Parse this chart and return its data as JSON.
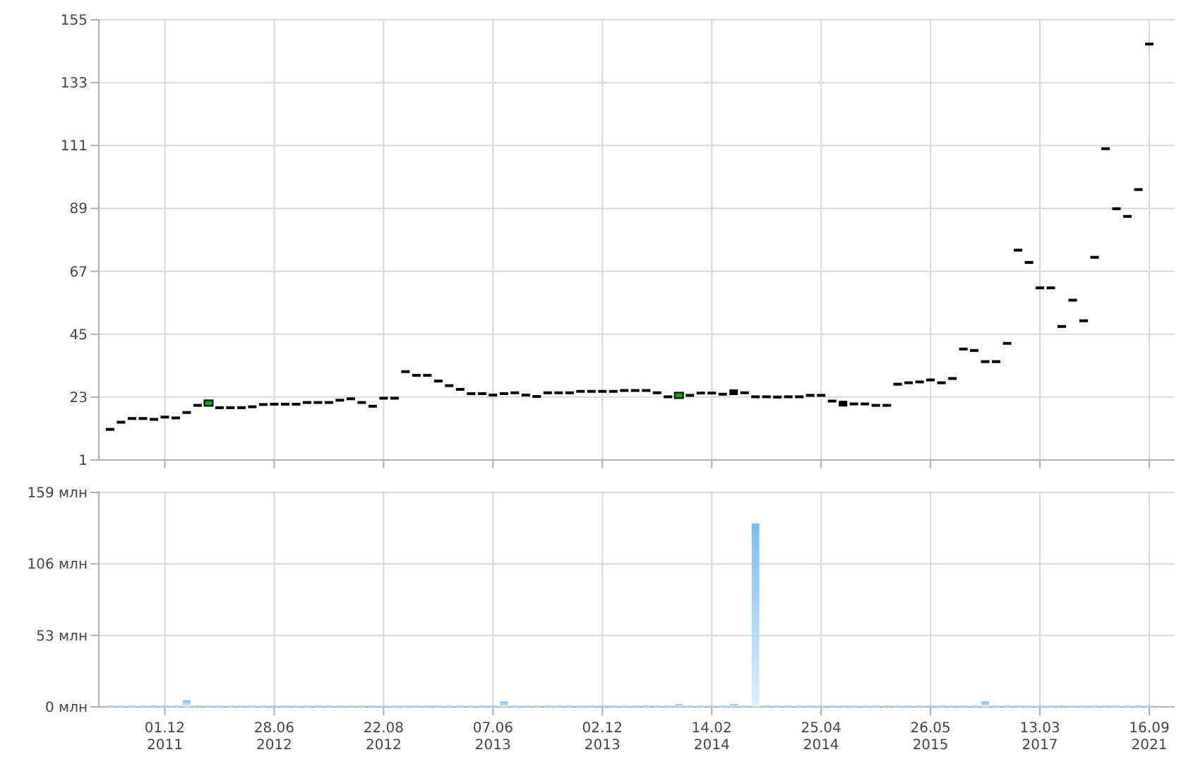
{
  "chart_data": [
    {
      "type": "candlestick",
      "categories": [
        null,
        null,
        null,
        null,
        null,
        null,
        null,
        null,
        null,
        null,
        null,
        null,
        null,
        null,
        null,
        null,
        null,
        null,
        null,
        null,
        null,
        null,
        null,
        null,
        null,
        null,
        null,
        null,
        null,
        null,
        null,
        null,
        null,
        null,
        null,
        null,
        null,
        null,
        null,
        null,
        null,
        null,
        null,
        null,
        null,
        null,
        null,
        null,
        null,
        null,
        null,
        null,
        null,
        null,
        null,
        null,
        null,
        null,
        null,
        null,
        null,
        null,
        null,
        null,
        null,
        null,
        null,
        null,
        null,
        null,
        null,
        null,
        null,
        null,
        null,
        null,
        null,
        null,
        null,
        null,
        null,
        null,
        null,
        null,
        null,
        null,
        null,
        null,
        null,
        null,
        null,
        null,
        null,
        null,
        null,
        null
      ],
      "ohlc": [
        [
          11.7,
          11.7,
          11.7,
          11.7
        ],
        [
          14.2,
          14.2,
          14.2,
          14.2
        ],
        [
          15.5,
          15.5,
          15.5,
          15.5
        ],
        [
          15.5,
          15.5,
          15.5,
          15.5
        ],
        [
          15.2,
          15.2,
          15.2,
          15.2
        ],
        [
          16.0,
          16.0,
          16.0,
          16.0
        ],
        [
          15.7,
          15.7,
          15.7,
          15.7
        ],
        [
          17.6,
          17.6,
          17.6,
          17.6
        ],
        [
          20.1,
          20.1,
          20.1,
          20.1
        ],
        [
          20.4,
          21.4,
          20.4,
          21.4
        ],
        [
          19.3,
          19.3,
          19.3,
          19.3
        ],
        [
          19.3,
          19.3,
          19.3,
          19.3
        ],
        [
          19.3,
          19.8,
          19.3,
          19.3
        ],
        [
          19.6,
          19.6,
          19.6,
          19.6
        ],
        [
          20.4,
          20.4,
          20.4,
          20.4
        ],
        [
          20.5,
          20.5,
          20.5,
          20.5
        ],
        [
          20.5,
          20.5,
          20.5,
          20.5
        ],
        [
          20.5,
          20.5,
          20.5,
          20.5
        ],
        [
          21.1,
          21.1,
          21.1,
          21.1
        ],
        [
          21.1,
          21.1,
          21.1,
          21.1
        ],
        [
          21.1,
          21.1,
          21.1,
          21.1
        ],
        [
          21.9,
          21.9,
          21.9,
          21.9
        ],
        [
          22.4,
          22.4,
          22.4,
          22.4
        ],
        [
          21.1,
          21.1,
          21.1,
          21.1
        ],
        [
          19.8,
          19.8,
          19.8,
          19.8
        ],
        [
          22.6,
          22.6,
          22.6,
          22.6
        ],
        [
          22.6,
          22.6,
          22.6,
          22.6
        ],
        [
          31.9,
          31.9,
          31.9,
          31.9
        ],
        [
          30.6,
          30.6,
          30.6,
          30.6
        ],
        [
          30.6,
          30.6,
          30.6,
          30.6
        ],
        [
          28.6,
          28.6,
          28.6,
          28.6
        ],
        [
          27.0,
          27.0,
          27.0,
          27.0
        ],
        [
          25.7,
          25.7,
          25.7,
          25.7
        ],
        [
          24.2,
          24.2,
          24.2,
          24.2
        ],
        [
          24.2,
          24.2,
          24.2,
          24.2
        ],
        [
          23.7,
          23.7,
          23.7,
          23.7
        ],
        [
          24.2,
          24.2,
          24.2,
          24.2
        ],
        [
          24.5,
          24.5,
          24.5,
          24.5
        ],
        [
          23.7,
          23.7,
          23.7,
          23.7
        ],
        [
          23.2,
          23.2,
          23.2,
          23.2
        ],
        [
          24.5,
          24.5,
          24.5,
          24.5
        ],
        [
          24.5,
          24.5,
          24.5,
          24.5
        ],
        [
          24.5,
          24.5,
          24.5,
          24.5
        ],
        [
          25.0,
          25.0,
          25.0,
          25.0
        ],
        [
          25.0,
          25.0,
          25.0,
          25.0
        ],
        [
          25.0,
          25.0,
          25.0,
          25.0
        ],
        [
          25.0,
          25.0,
          25.0,
          25.0
        ],
        [
          25.3,
          25.3,
          25.3,
          25.3
        ],
        [
          25.3,
          25.3,
          25.3,
          25.3
        ],
        [
          25.3,
          25.3,
          25.3,
          25.3
        ],
        [
          24.5,
          24.5,
          24.5,
          24.5
        ],
        [
          23.1,
          23.1,
          23.1,
          23.1
        ],
        [
          23.1,
          24.1,
          23.1,
          24.1
        ],
        [
          23.6,
          23.6,
          23.6,
          23.6
        ],
        [
          24.4,
          24.4,
          24.4,
          24.4
        ],
        [
          24.4,
          24.4,
          24.4,
          24.4
        ],
        [
          24.0,
          24.0,
          24.0,
          24.0
        ],
        [
          25.2,
          25.2,
          24.2,
          24.2
        ],
        [
          24.5,
          24.5,
          24.5,
          24.5
        ],
        [
          23.1,
          23.1,
          23.1,
          23.1
        ],
        [
          23.1,
          23.1,
          23.1,
          23.1
        ],
        [
          23.0,
          23.5,
          23.0,
          23.0
        ],
        [
          23.1,
          23.1,
          23.1,
          23.1
        ],
        [
          23.1,
          23.1,
          23.1,
          23.1
        ],
        [
          23.6,
          23.6,
          23.6,
          23.6
        ],
        [
          23.6,
          23.6,
          23.6,
          23.6
        ],
        [
          21.6,
          21.6,
          21.6,
          21.6
        ],
        [
          21.2,
          21.2,
          20.2,
          20.2
        ],
        [
          20.6,
          20.6,
          20.6,
          20.6
        ],
        [
          20.6,
          20.6,
          20.6,
          20.6
        ],
        [
          20.1,
          20.1,
          20.1,
          20.1
        ],
        [
          20.1,
          20.1,
          20.1,
          20.1
        ],
        [
          27.5,
          27.5,
          27.5,
          27.5
        ],
        [
          28.0,
          28.0,
          28.0,
          28.0
        ],
        [
          28.3,
          28.3,
          28.3,
          28.3
        ],
        [
          29.0,
          29.0,
          29.0,
          29.0
        ],
        [
          28.0,
          28.0,
          28.0,
          28.0
        ],
        [
          29.5,
          29.5,
          29.5,
          29.5
        ],
        [
          39.8,
          39.8,
          39.8,
          39.8
        ],
        [
          39.3,
          39.3,
          39.3,
          39.3
        ],
        [
          35.4,
          35.4,
          35.4,
          35.4
        ],
        [
          35.4,
          35.4,
          35.4,
          35.4
        ],
        [
          41.8,
          41.8,
          41.8,
          41.8
        ],
        [
          74.4,
          74.4,
          74.4,
          74.4
        ],
        [
          70.1,
          70.1,
          70.1,
          70.1
        ],
        [
          61.2,
          61.2,
          61.2,
          61.2
        ],
        [
          61.2,
          61.2,
          61.2,
          61.2
        ],
        [
          47.7,
          47.7,
          47.7,
          47.7
        ],
        [
          56.9,
          56.9,
          56.9,
          56.9
        ],
        [
          49.7,
          49.7,
          49.7,
          49.7
        ],
        [
          71.9,
          71.9,
          71.9,
          71.9
        ],
        [
          109.9,
          109.9,
          109.9,
          109.9
        ],
        [
          88.9,
          88.9,
          88.9,
          88.9
        ],
        [
          86.2,
          86.2,
          86.2,
          86.2
        ],
        [
          95.6,
          95.6,
          95.6,
          95.6
        ],
        [
          146.5,
          146.5,
          146.5,
          146.5
        ]
      ],
      "ylim": [
        1,
        155
      ],
      "yticks": [
        1,
        23,
        45,
        67,
        89,
        111,
        133,
        155
      ],
      "grid": true
    },
    {
      "type": "bar",
      "categories": [
        null,
        null,
        null,
        null,
        null,
        "01.12\n2011",
        null,
        null,
        null,
        null,
        null,
        null,
        null,
        null,
        null,
        "28.06\n2012",
        null,
        null,
        null,
        null,
        null,
        null,
        null,
        null,
        null,
        "22.08\n2012",
        null,
        null,
        null,
        null,
        null,
        null,
        null,
        null,
        null,
        "07.06\n2013",
        null,
        null,
        null,
        null,
        null,
        null,
        null,
        null,
        null,
        "02.12\n2013",
        null,
        null,
        null,
        null,
        null,
        null,
        null,
        null,
        null,
        "14.02\n2014",
        null,
        null,
        null,
        null,
        null,
        null,
        null,
        null,
        null,
        "25.04\n2014",
        null,
        null,
        null,
        null,
        null,
        null,
        null,
        null,
        null,
        "26.05\n2015",
        null,
        null,
        null,
        null,
        null,
        null,
        null,
        null,
        null,
        "13.03\n2017",
        null,
        null,
        null,
        null,
        null,
        null,
        null,
        null,
        null,
        "16.09\n2021"
      ],
      "values": [
        1,
        1,
        1,
        1,
        1,
        1,
        1,
        5,
        1,
        1,
        1,
        1,
        1,
        1,
        1,
        1,
        1,
        1,
        1,
        1,
        1,
        1,
        1,
        1,
        1,
        1,
        1,
        1,
        1,
        1,
        1,
        1,
        1,
        1,
        1,
        1,
        4,
        1,
        1,
        1,
        1,
        1,
        1,
        1,
        1,
        1,
        1,
        1,
        1,
        1,
        1,
        1,
        2,
        1,
        1,
        1,
        1,
        2,
        1,
        136,
        1,
        1,
        1,
        1,
        1,
        1,
        1,
        1,
        1,
        1,
        1,
        1,
        1,
        1,
        1,
        1,
        1,
        1,
        1,
        1,
        4,
        1,
        1,
        1,
        1,
        1,
        1,
        1,
        1,
        1,
        1,
        1,
        1,
        1,
        1,
        1
      ],
      "color": "#7dbdee",
      "ylim": [
        0,
        159
      ],
      "yticks": [
        {
          "value": 0,
          "label": "0 млн"
        },
        {
          "value": 53,
          "label": "53 млн"
        },
        {
          "value": 106,
          "label": "106 млн"
        },
        {
          "value": 159,
          "label": "159 млн"
        }
      ],
      "grid": true
    }
  ]
}
